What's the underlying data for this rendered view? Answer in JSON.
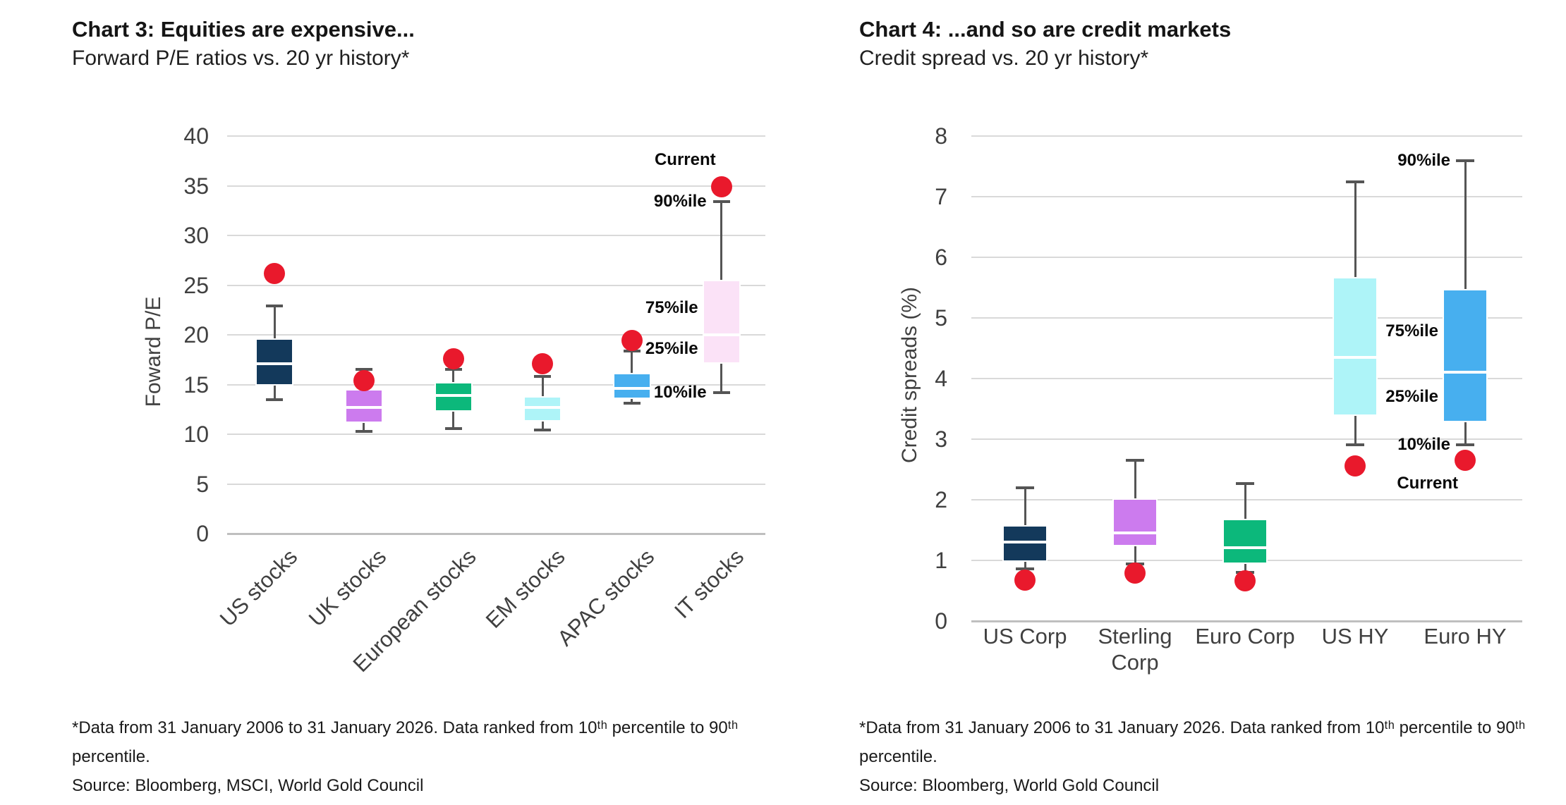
{
  "chart_data": [
    {
      "type": "box",
      "title": "Chart 3: Equities are expensive...",
      "subtitle": "Forward P/E ratios vs. 20 yr history*",
      "ylabel": "Foward P/E",
      "ylim": [
        0,
        40
      ],
      "yticks": [
        0,
        5,
        10,
        15,
        20,
        25,
        30,
        35,
        40
      ],
      "grid": "horizontal",
      "legend": "none",
      "marker_color": "#E9192C",
      "whisker_color": "#555555",
      "labels": {
        "current": "Current",
        "p90": "90%ile",
        "p75": "75%ile",
        "p25": "25%ile",
        "p10": "10%ile"
      },
      "categories": [
        "US stocks",
        "UK stocks",
        "European stocks",
        "EM stocks",
        "APAC stocks",
        "IT stocks"
      ],
      "series": [
        {
          "name": "US stocks",
          "color": "#13395B",
          "p10": 13.5,
          "p25": 15.0,
          "median": 17.1,
          "p75": 19.5,
          "p90": 22.9,
          "current": 26.2
        },
        {
          "name": "UK stocks",
          "color": "#CC7BEE",
          "p10": 10.3,
          "p25": 11.3,
          "median": 12.7,
          "p75": 14.4,
          "p90": 16.5,
          "current": 15.4
        },
        {
          "name": "European stocks",
          "color": "#0CB87B",
          "p10": 10.6,
          "p25": 12.4,
          "median": 13.9,
          "p75": 15.1,
          "p90": 16.5,
          "current": 17.6
        },
        {
          "name": "EM stocks",
          "color": "#AEF4F8",
          "p10": 10.4,
          "p25": 11.4,
          "median": 12.7,
          "p75": 13.7,
          "p90": 15.8,
          "current": 17.1
        },
        {
          "name": "APAC stocks",
          "color": "#47AFEF",
          "p10": 13.1,
          "p25": 13.7,
          "median": 14.6,
          "p75": 16.0,
          "p90": 18.4,
          "current": 19.4
        },
        {
          "name": "IT stocks",
          "color": "#FBE2F7",
          "p10": 14.2,
          "p25": 17.2,
          "median": 20.0,
          "p75": 25.4,
          "p90": 33.4,
          "current": 34.9
        }
      ],
      "footnote_line1": "*Data from 31 January 2006 to 31 January 2026. Data ranked from 10ᵗʰ percentile to 90ᵗʰ",
      "footnote_line2": "percentile.",
      "source": "Source: Bloomberg, MSCI, World Gold Council"
    },
    {
      "type": "box",
      "title": "Chart 4: ...and so are credit markets",
      "subtitle": "Credit spread vs. 20 yr history*",
      "ylabel": "Credit spreads (%)",
      "ylim": [
        0,
        8
      ],
      "yticks": [
        0,
        1,
        2,
        3,
        4,
        5,
        6,
        7,
        8
      ],
      "grid": "horizontal",
      "legend": "none",
      "marker_color": "#E9192C",
      "whisker_color": "#555555",
      "labels": {
        "current": "Current",
        "p90": "90%ile",
        "p75": "75%ile",
        "p25": "25%ile",
        "p10": "10%ile"
      },
      "categories": [
        "US Corp",
        "Sterling\nCorp",
        "Euro Corp",
        "US HY",
        "Euro HY"
      ],
      "series": [
        {
          "name": "US Corp",
          "color": "#13395B",
          "p10": 0.86,
          "p25": 1.0,
          "median": 1.3,
          "p75": 1.55,
          "p90": 2.2,
          "current": 0.67
        },
        {
          "name": "Sterling Corp",
          "color": "#CC7BEE",
          "p10": 0.94,
          "p25": 1.25,
          "median": 1.45,
          "p75": 2.0,
          "p90": 2.65,
          "current": 0.78
        },
        {
          "name": "Euro Corp",
          "color": "#0CB87B",
          "p10": 0.8,
          "p25": 0.96,
          "median": 1.2,
          "p75": 1.66,
          "p90": 2.26,
          "current": 0.66
        },
        {
          "name": "US HY",
          "color": "#AEF4F8",
          "p10": 2.9,
          "p25": 3.4,
          "median": 4.35,
          "p75": 5.65,
          "p90": 7.25,
          "current": 2.55
        },
        {
          "name": "Euro HY",
          "color": "#47AFEF",
          "p10": 2.9,
          "p25": 3.3,
          "median": 4.1,
          "p75": 5.45,
          "p90": 7.6,
          "current": 2.65
        }
      ],
      "footnote_line1": "*Data from 31 January 2006 to 31 January 2026. Data ranked from 10ᵗʰ percentile to 90ᵗʰ",
      "footnote_line2": "percentile.",
      "source": "Source: Bloomberg, World Gold Council"
    }
  ]
}
